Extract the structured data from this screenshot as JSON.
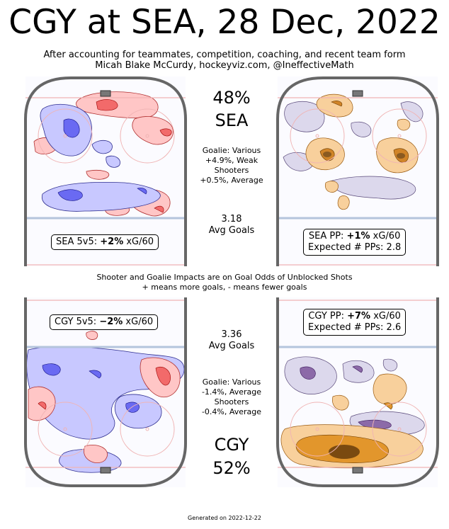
{
  "title": "CGY at SEA, 28 Dec, 2022",
  "subtitle_line1": "After accounting for teammates, competition, coaching, and recent team form",
  "subtitle_line2": "Micah Blake McCurdy, hockeyviz.com, @IneffectiveMath",
  "home": {
    "win_pct": "48%",
    "team": "SEA",
    "goalie_line1": "Goalie: Various",
    "goalie_line2": "+4.9%, Weak",
    "shooters_line1": "Shooters",
    "shooters_line2": "+0.5%, Average",
    "avg_goals_value": "3.18",
    "avg_goals_label": "Avg Goals",
    "fivev5_prefix": "SEA 5v5: ",
    "fivev5_value": "+2%",
    "fivev5_suffix": " xG/60",
    "pp_prefix": "SEA PP: ",
    "pp_value": "+1%",
    "pp_suffix": " xG/60",
    "pp_expected": "Expected # PPs: 2.8"
  },
  "away": {
    "win_pct": "52%",
    "team": "CGY",
    "goalie_line1": "Goalie: Various",
    "goalie_line2": "-1.4%, Average",
    "shooters_line1": "Shooters",
    "shooters_line2": "-0.4%, Average",
    "avg_goals_value": "3.36",
    "avg_goals_label": "Avg Goals",
    "fivev5_prefix": "CGY 5v5: ",
    "fivev5_value": "−2%",
    "fivev5_suffix": " xG/60",
    "pp_prefix": "CGY PP: ",
    "pp_value": "+7%",
    "pp_suffix": " xG/60",
    "pp_expected": "Expected # PPs: 2.6"
  },
  "middle_note_line1": "Shooter and Goalie Impacts are on Goal Odds of Unblocked Shots",
  "middle_note_line2": "+ means more goals, - means fewer goals",
  "footer": "Generated on 2022-12-22",
  "chart_data": {
    "type": "heatmap",
    "description_panels": [
      "SEA 5v5",
      "SEA PP",
      "CGY 5v5",
      "CGY PP"
    ],
    "colors": {
      "more_5v5": "#e03030",
      "fewer_5v5": "#3030e0",
      "more_pp": "#e08a10",
      "fewer_pp": "#5a3a7a",
      "rink_border": "#666666",
      "blue_line": "#b4c4dc",
      "red_line": "#f0b4b4"
    }
  }
}
